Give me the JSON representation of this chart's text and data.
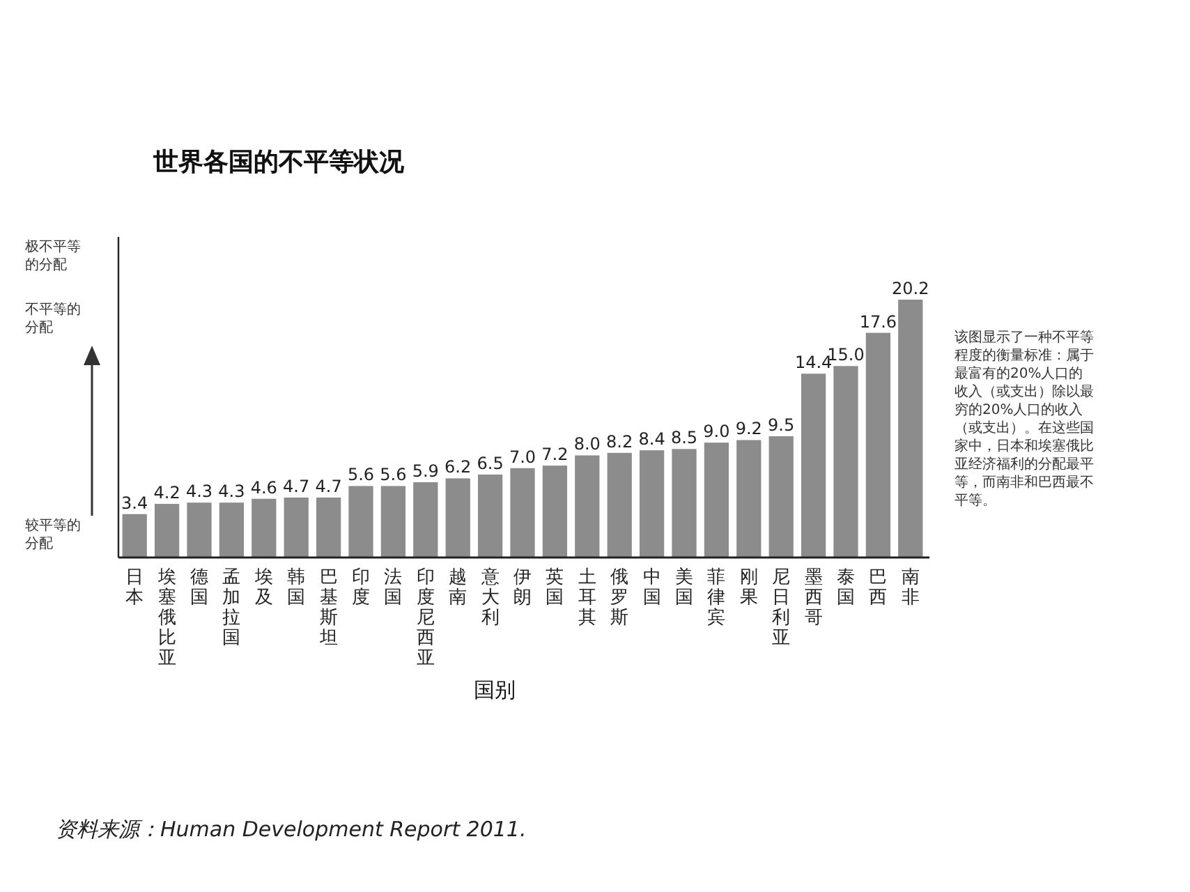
{
  "chart_data": {
    "type": "bar",
    "title": "世界各国的不平等状况",
    "xlabel": "国别",
    "categories": [
      "日本",
      "埃塞俄比亚",
      "德国",
      "孟加拉国",
      "埃及",
      "韩国",
      "巴基斯坦",
      "印度",
      "法国",
      "印度尼西亚",
      "越南",
      "意大利",
      "伊朗",
      "英国",
      "土耳其",
      "俄罗斯",
      "中国",
      "美国",
      "菲律宾",
      "刚果",
      "尼日利亚",
      "墨西哥",
      "泰国",
      "巴西",
      "南非"
    ],
    "values": [
      3.4,
      4.2,
      4.3,
      4.3,
      4.6,
      4.7,
      4.7,
      5.6,
      5.6,
      5.9,
      6.2,
      6.5,
      7.0,
      7.2,
      8.0,
      8.2,
      8.4,
      8.5,
      9.0,
      9.2,
      9.5,
      14.4,
      15.0,
      17.6,
      20.2
    ],
    "value_labels": [
      "3.4",
      "4.2",
      "4.3",
      "4.3",
      "4.6",
      "4.7",
      "4.7",
      "5.6",
      "5.6",
      "5.9",
      "6.2",
      "6.5",
      "7.0",
      "7.2",
      "8.0",
      "8.2",
      "8.4",
      "8.5",
      "9.0",
      "9.2",
      "9.5",
      "14.4",
      "15.0",
      "17.6",
      "20.2"
    ],
    "color": "#8c8c8c",
    "annotations": [
      "极不平等的分配",
      "不平等的分配",
      "较平等的分配",
      "该图显示了一种不平等程度的衡量标准：属于最富有的20%人口的收入（或支出）除以最穷的20%人口的收入（或支出）。在这些国家中，日本和埃塞俄比亚经济福利的分配最平等，而南非和巴西最不平等。",
      "资料来源：Human Development Report 2011."
    ]
  }
}
